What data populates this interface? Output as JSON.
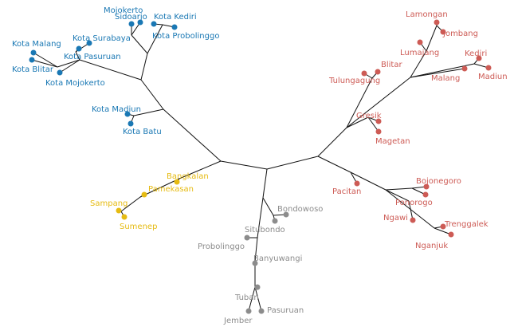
{
  "colors": {
    "blue": "#1a78b4",
    "red": "#cd5b55",
    "yellow": "#e6bb12",
    "gray": "#8c8c8c",
    "edge": "#111111"
  },
  "clusters": [
    {
      "id": "blue",
      "color": "#1a78b4",
      "tips": [
        {
          "id": "sidoarjo",
          "label": "Sidoarjo"
        },
        {
          "id": "mojokerto",
          "label": "Mojokerto"
        },
        {
          "id": "kota-kediri",
          "label": "Kota Kediri"
        },
        {
          "id": "kota-probolinggo",
          "label": "Kota Probolinggo"
        },
        {
          "id": "kota-surabaya",
          "label": "Kota Surabaya"
        },
        {
          "id": "kota-pasuruan",
          "label": "Kota Pasuruan"
        },
        {
          "id": "kota-malang",
          "label": "Kota Malang"
        },
        {
          "id": "kota-blitar",
          "label": "Kota Blitar"
        },
        {
          "id": "kota-mojokerto",
          "label": "Kota Mojokerto"
        },
        {
          "id": "kota-madiun",
          "label": "Kota Madiun"
        },
        {
          "id": "kota-batu",
          "label": "Kota Batu"
        }
      ]
    },
    {
      "id": "red",
      "color": "#cd5b55",
      "tips": [
        {
          "id": "lamongan",
          "label": "Lamongan"
        },
        {
          "id": "jombang",
          "label": "Jombang"
        },
        {
          "id": "lumajang",
          "label": "Lumajang"
        },
        {
          "id": "kediri",
          "label": "Kediri"
        },
        {
          "id": "madiun",
          "label": "Madiun"
        },
        {
          "id": "malang",
          "label": "Malang"
        },
        {
          "id": "blitar",
          "label": "Blitar"
        },
        {
          "id": "tulungagung",
          "label": "Tulungagung"
        },
        {
          "id": "gresik",
          "label": "Gresik"
        },
        {
          "id": "magetan",
          "label": "Magetan"
        },
        {
          "id": "pacitan",
          "label": "Pacitan"
        },
        {
          "id": "bojonegoro",
          "label": "Bojonegoro"
        },
        {
          "id": "ponorogo",
          "label": "Ponorogo"
        },
        {
          "id": "ngawi",
          "label": "Ngawi"
        },
        {
          "id": "trenggalek",
          "label": "Trenggalek"
        },
        {
          "id": "nganjuk",
          "label": "Nganjuk"
        }
      ]
    },
    {
      "id": "yellow",
      "color": "#e6bb12",
      "tips": [
        {
          "id": "bangkalan",
          "label": "Bangkalan"
        },
        {
          "id": "pamekasan",
          "label": "Pamekasan"
        },
        {
          "id": "sampang",
          "label": "Sampang"
        },
        {
          "id": "sumenep",
          "label": "Sumenep"
        }
      ]
    },
    {
      "id": "gray",
      "color": "#8c8c8c",
      "tips": [
        {
          "id": "bondowoso",
          "label": "Bondowoso"
        },
        {
          "id": "situbondo",
          "label": "Situbondo"
        },
        {
          "id": "probolinggo",
          "label": "Probolinggo"
        },
        {
          "id": "banyuwangi",
          "label": "Banyuwangi"
        },
        {
          "id": "tuban",
          "label": "Tuban"
        },
        {
          "id": "jember",
          "label": "Jember"
        },
        {
          "id": "pasuruan",
          "label": "Pasuruan"
        }
      ]
    }
  ]
}
